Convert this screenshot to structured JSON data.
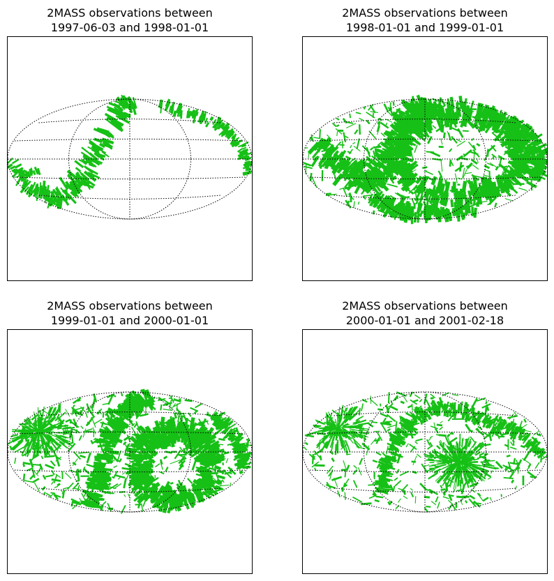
{
  "figure": {
    "panels": [
      {
        "title_line1": "2MASS observations between",
        "title_line2": "1997-06-03 and 1998-01-01"
      },
      {
        "title_line1": "2MASS observations between",
        "title_line2": "1998-01-01 and 1999-01-01"
      },
      {
        "title_line1": "2MASS observations between",
        "title_line2": "1999-01-01 and 2000-01-01"
      },
      {
        "title_line1": "2MASS observations between",
        "title_line2": "2000-01-01 and 2001-02-18"
      }
    ]
  },
  "chart_data": [
    {
      "type": "scatter",
      "projection": "aitoff",
      "title": "2MASS observations between 1997-06-03 and 1998-01-01",
      "marker_color": "#16c016",
      "grid": true,
      "xlabel": "",
      "ylabel": "",
      "coverage": "partial"
    },
    {
      "type": "scatter",
      "projection": "aitoff",
      "title": "2MASS observations between 1998-01-01 and 1999-01-01",
      "marker_color": "#16c016",
      "grid": true,
      "xlabel": "",
      "ylabel": "",
      "coverage": "dense"
    },
    {
      "type": "scatter",
      "projection": "aitoff",
      "title": "2MASS observations between 1999-01-01 and 2000-01-01",
      "marker_color": "#16c016",
      "grid": true,
      "xlabel": "",
      "ylabel": "",
      "coverage": "dense"
    },
    {
      "type": "scatter",
      "projection": "aitoff",
      "title": "2MASS observations between 2000-01-01 and 2001-02-18",
      "marker_color": "#16c016",
      "grid": true,
      "xlabel": "",
      "ylabel": "",
      "coverage": "sparse"
    }
  ]
}
